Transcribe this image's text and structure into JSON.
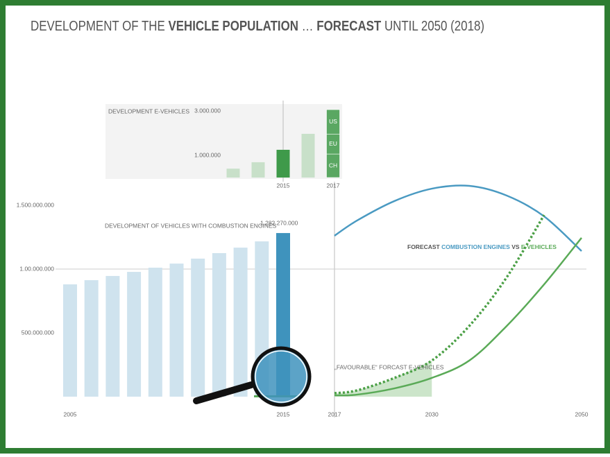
{
  "title": [
    {
      "text": "DEVELOPMENT OF THE ",
      "bold": false
    },
    {
      "text": "VEHICLE POPULATION",
      "bold": true
    },
    {
      "text": " … ",
      "bold": false
    },
    {
      "text": "FORECAST",
      "bold": true
    },
    {
      "text": " UNTIL 2050 (2018)",
      "bold": false
    }
  ],
  "chart_data": [
    {
      "type": "bar",
      "title": "DEVELOPMENT OF VEHICLES WITH COMBUSTION ENGINES",
      "categories": [
        "2005",
        null,
        null,
        null,
        null,
        null,
        null,
        null,
        null,
        null,
        "2015"
      ],
      "values": [
        880000000,
        913000000,
        946000000,
        978000000,
        1011000000,
        1043000000,
        1082000000,
        1125000000,
        1168000000,
        1217000000,
        1282270000
      ],
      "value_labels": [
        null,
        null,
        null,
        null,
        null,
        null,
        null,
        null,
        null,
        null,
        "1.282.270.000"
      ],
      "colors": [
        "#cfe3ee",
        "#cfe3ee",
        "#cfe3ee",
        "#cfe3ee",
        "#cfe3ee",
        "#cfe3ee",
        "#cfe3ee",
        "#cfe3ee",
        "#cfe3ee",
        "#cfe3ee",
        "#3f93bd"
      ],
      "ylim": [
        0,
        1700000000
      ],
      "yticks": [
        {
          "value": 500000000,
          "label": "500.000.000"
        },
        {
          "value": 1000000000,
          "label": "1.00.000.000",
          "grid": true
        },
        {
          "value": 1500000000,
          "label": "1.500.000.000"
        }
      ]
    },
    {
      "type": "bar",
      "title": "DEVELOPMENT E-VEHICLES",
      "categories": [
        null,
        null,
        "2015",
        null,
        "2017"
      ],
      "values": [
        400000,
        690000,
        1250000,
        1970000,
        null
      ],
      "colors": [
        "#c8e0c9",
        "#c8e0c9",
        "#3f9a4a",
        "#c8e0c9",
        null
      ],
      "stack": {
        "category": "2017",
        "color": "#5aa762",
        "segments": [
          {
            "name": "CH",
            "value": 1060000
          },
          {
            "name": "EU",
            "value": 900000
          },
          {
            "name": "US",
            "value": 1100000
          }
        ]
      },
      "ylim": [
        0,
        3000000
      ],
      "yticks": [
        {
          "value": 1000000,
          "label": "1.000.000"
        },
        {
          "value": 3000000,
          "label": "3.000.000"
        }
      ]
    },
    {
      "type": "line",
      "title_prefix": "FORECAST ",
      "title_joiner": " VS ",
      "x": [
        2017,
        2020,
        2025,
        2030,
        2035,
        2040,
        2045,
        2050
      ],
      "xlim": [
        2017,
        2050
      ],
      "xticks": [
        2017,
        2030,
        2050
      ],
      "ylim": [
        0,
        1700000000
      ],
      "series": [
        {
          "name": "COMBUSTION ENGINES",
          "color": "#4a9ac2",
          "values": [
            1261000000,
            1380000000,
            1533000000,
            1630000000,
            1652000000,
            1576000000,
            1413000000,
            1141000000
          ]
        },
        {
          "name": "E-VEHICLES",
          "color": "#5aaa57",
          "values": [
            10000000,
            16000000,
            65000000,
            147000000,
            283000000,
            554000000,
            880000000,
            1245000000
          ]
        },
        {
          "name": "„FAVOURABLE“ FORCAST E-VEHICLES",
          "color": "#4a9f45",
          "dashed": true,
          "shade_until": 2030,
          "shade_color": "#c6e2c4",
          "values": [
            27000000,
            49000000,
            147000000,
            283000000,
            554000000,
            935000000,
            1424000000,
            null
          ]
        }
      ]
    }
  ]
}
